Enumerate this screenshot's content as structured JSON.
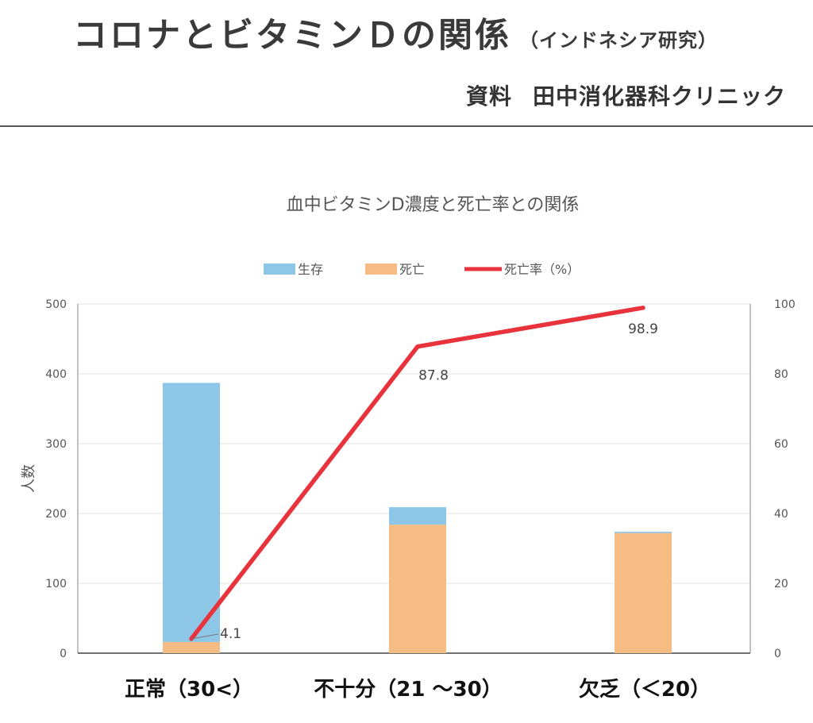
{
  "header": {
    "title": "コロナとビタミンＤの関係",
    "subtitle": "（インドネシア研究）",
    "source_label": "資料",
    "source_name": "田中消化器科クリニック"
  },
  "chart_data": {
    "type": "bar+line",
    "title": "血中ビタミンD濃度と死亡率との関係",
    "categories": [
      "正常（30<）",
      "不十分（21 〜30）",
      "欠乏（＜20）"
    ],
    "series": [
      {
        "name": "生存",
        "kind": "bar-stacked",
        "axis": "left",
        "color": "#8ec6e8",
        "values": [
          371,
          25,
          2
        ]
      },
      {
        "name": "死亡",
        "kind": "bar-stacked",
        "axis": "left",
        "color": "#f5bd83",
        "values": [
          16,
          184,
          172
        ]
      },
      {
        "name": "死亡率（%）",
        "kind": "line",
        "axis": "right",
        "color": "#e8323c",
        "values": [
          4.1,
          87.8,
          98.9
        ]
      }
    ],
    "data_labels": [
      "4.1",
      "87.8",
      "98.9"
    ],
    "ylabel": "人数",
    "ylim": [
      0,
      500
    ],
    "yticks": [
      0,
      100,
      200,
      300,
      400,
      500
    ],
    "y2lim": [
      0,
      100
    ],
    "y2ticks": [
      0,
      20,
      40,
      60,
      80,
      100
    ],
    "legend_position": "top",
    "grid": true
  }
}
